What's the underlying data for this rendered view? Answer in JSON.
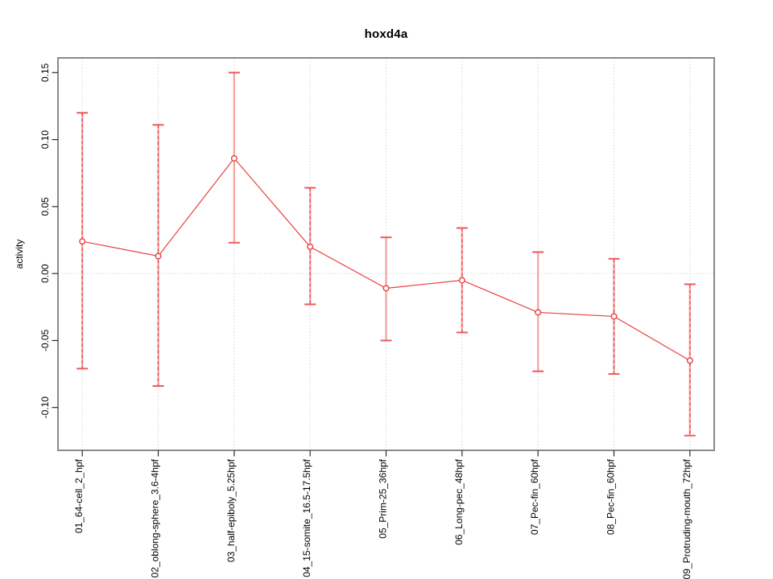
{
  "chart_data": {
    "type": "line",
    "title": "hoxd4a",
    "xlabel": "",
    "ylabel": "activity",
    "categories": [
      "01_64-cell_2_hpf",
      "02_oblong-sphere_3.6-4hpf",
      "03_half-epiboly_5.25hpf",
      "04_15-somite_16.5-17.5hpf",
      "05_Prim-25_36hpf",
      "06_Long-pec_48hpf",
      "07_Pec-fin_60hpf",
      "08_Pec-fin_60hpf",
      "09_Protruding-mouth_72hpf"
    ],
    "series": [
      {
        "name": "activity",
        "means": [
          0.024,
          0.013,
          0.086,
          0.02,
          -0.011,
          -0.005,
          -0.029,
          -0.032,
          -0.065
        ],
        "upper": [
          0.12,
          0.111,
          0.15,
          0.064,
          0.027,
          0.034,
          0.016,
          0.011,
          -0.008
        ],
        "lower": [
          -0.071,
          -0.084,
          0.023,
          -0.023,
          -0.05,
          -0.044,
          -0.073,
          -0.075,
          -0.121
        ],
        "dashed_overlay": [
          true,
          true,
          false,
          true,
          false,
          true,
          false,
          true,
          true
        ]
      }
    ],
    "yticks": [
      0.15,
      0.1,
      0.05,
      0.0,
      -0.05,
      -0.1
    ],
    "ytick_labels": [
      "0.15",
      "0.10",
      "0.05",
      "0.00",
      "-0.05",
      "-0.10"
    ],
    "ylim": [
      -0.132,
      0.161
    ],
    "x_user_range": [
      0.68,
      9.32
    ],
    "grid": {
      "vertical": "dotted at each category",
      "horizontal": "dotted at y=0"
    },
    "legend": "none",
    "colors": {
      "line": "#e73f3f",
      "marker_stroke": "#e73f3f",
      "errorbar_fill": "#f5a8a8",
      "errorbar_dash": "#e65050",
      "errorbar_cap": "#ec5a5a",
      "gridline": "#d6d6d6",
      "box": "#8a8a8a",
      "tick": "#2b2b2b",
      "text": "#000000"
    }
  }
}
